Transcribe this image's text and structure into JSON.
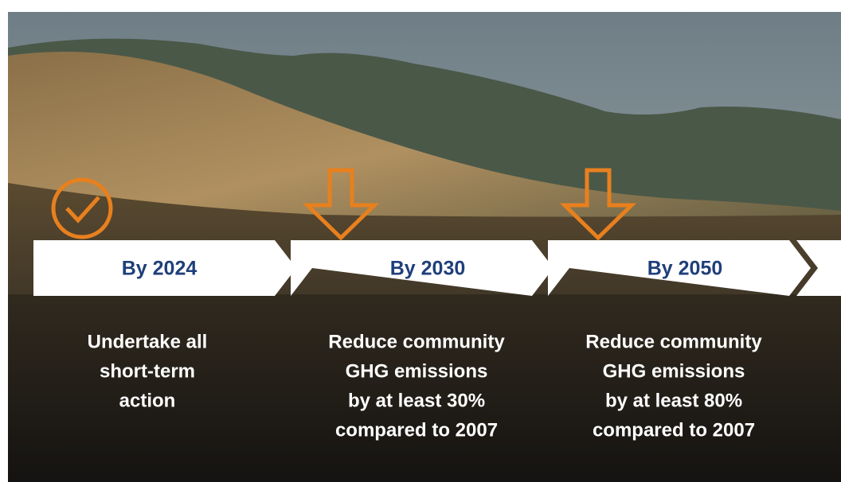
{
  "timeline": {
    "steps": [
      {
        "label": "By 2024",
        "icon": "check",
        "description": [
          "Undertake all",
          "short-term",
          "action"
        ]
      },
      {
        "label": "By 2030",
        "icon": "arrow",
        "description": [
          "Reduce community",
          "GHG emissions",
          "by at least 30%",
          "compared to 2007"
        ]
      },
      {
        "label": "By 2050",
        "icon": "arrow",
        "description": [
          "Reduce community",
          "GHG emissions",
          "by at least 80%",
          "compared to 2007"
        ]
      }
    ]
  }
}
